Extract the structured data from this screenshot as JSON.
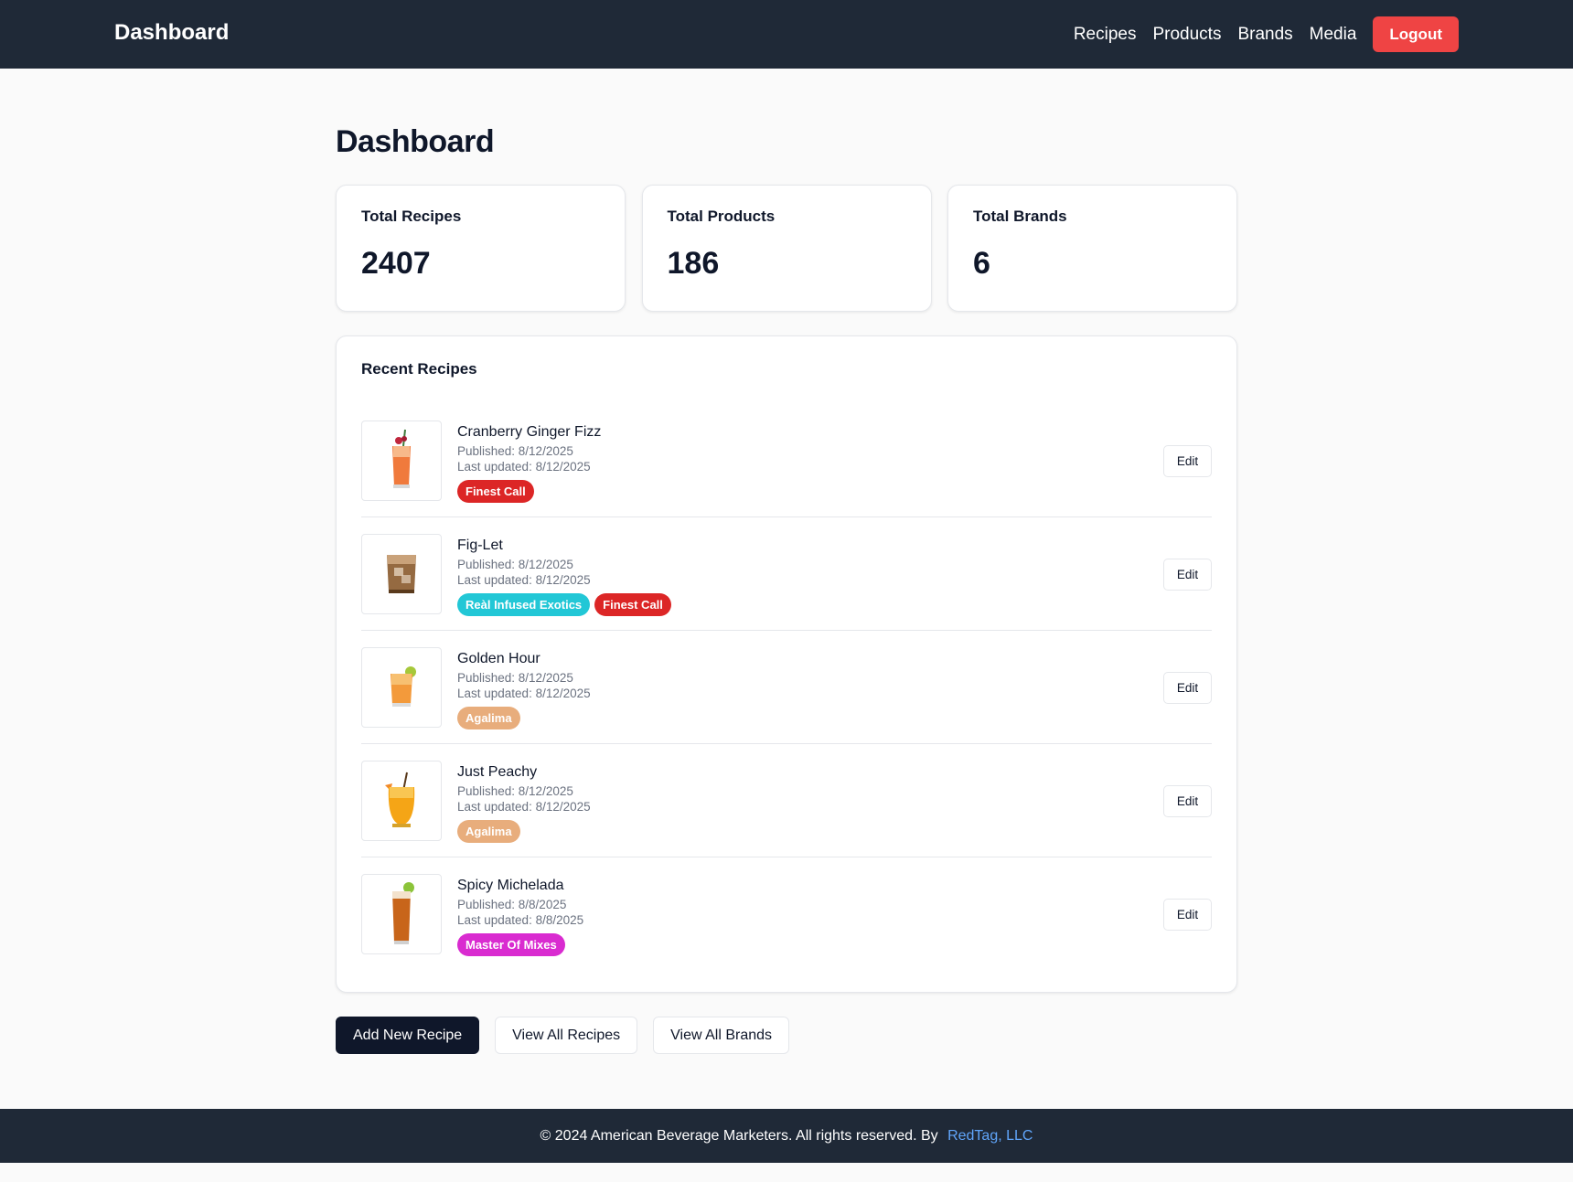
{
  "header": {
    "brand": "Dashboard",
    "nav": [
      "Recipes",
      "Products",
      "Brands",
      "Media"
    ],
    "logout_label": "Logout"
  },
  "page_title": "Dashboard",
  "stats": [
    {
      "label": "Total Recipes",
      "value": "2407"
    },
    {
      "label": "Total Products",
      "value": "186"
    },
    {
      "label": "Total Brands",
      "value": "6"
    }
  ],
  "recent": {
    "title": "Recent Recipes",
    "edit_label": "Edit",
    "items": [
      {
        "title": "Cranberry Ginger Fizz",
        "published": "Published: 8/12/2025",
        "updated": "Last updated: 8/12/2025",
        "tags": [
          {
            "label": "Finest Call",
            "color": "#dc2626"
          }
        ]
      },
      {
        "title": "Fig-Let",
        "published": "Published: 8/12/2025",
        "updated": "Last updated: 8/12/2025",
        "tags": [
          {
            "label": "Reàl Infused Exotics",
            "color": "#22c7d6"
          },
          {
            "label": "Finest Call",
            "color": "#dc2626"
          }
        ]
      },
      {
        "title": "Golden Hour",
        "published": "Published: 8/12/2025",
        "updated": "Last updated: 8/12/2025",
        "tags": [
          {
            "label": "Agalima",
            "color": "#e8ad7c"
          }
        ]
      },
      {
        "title": "Just Peachy",
        "published": "Published: 8/12/2025",
        "updated": "Last updated: 8/12/2025",
        "tags": [
          {
            "label": "Agalima",
            "color": "#e8ad7c"
          }
        ]
      },
      {
        "title": "Spicy Michelada",
        "published": "Published: 8/8/2025",
        "updated": "Last updated: 8/8/2025",
        "tags": [
          {
            "label": "Master Of Mixes",
            "color": "#d92bd0"
          }
        ]
      }
    ]
  },
  "actions": {
    "add_recipe": "Add New Recipe",
    "view_recipes": "View All Recipes",
    "view_brands": "View All Brands"
  },
  "footer": {
    "text": "© 2024 American Beverage Marketers. All rights reserved. By",
    "link": "RedTag, LLC"
  }
}
